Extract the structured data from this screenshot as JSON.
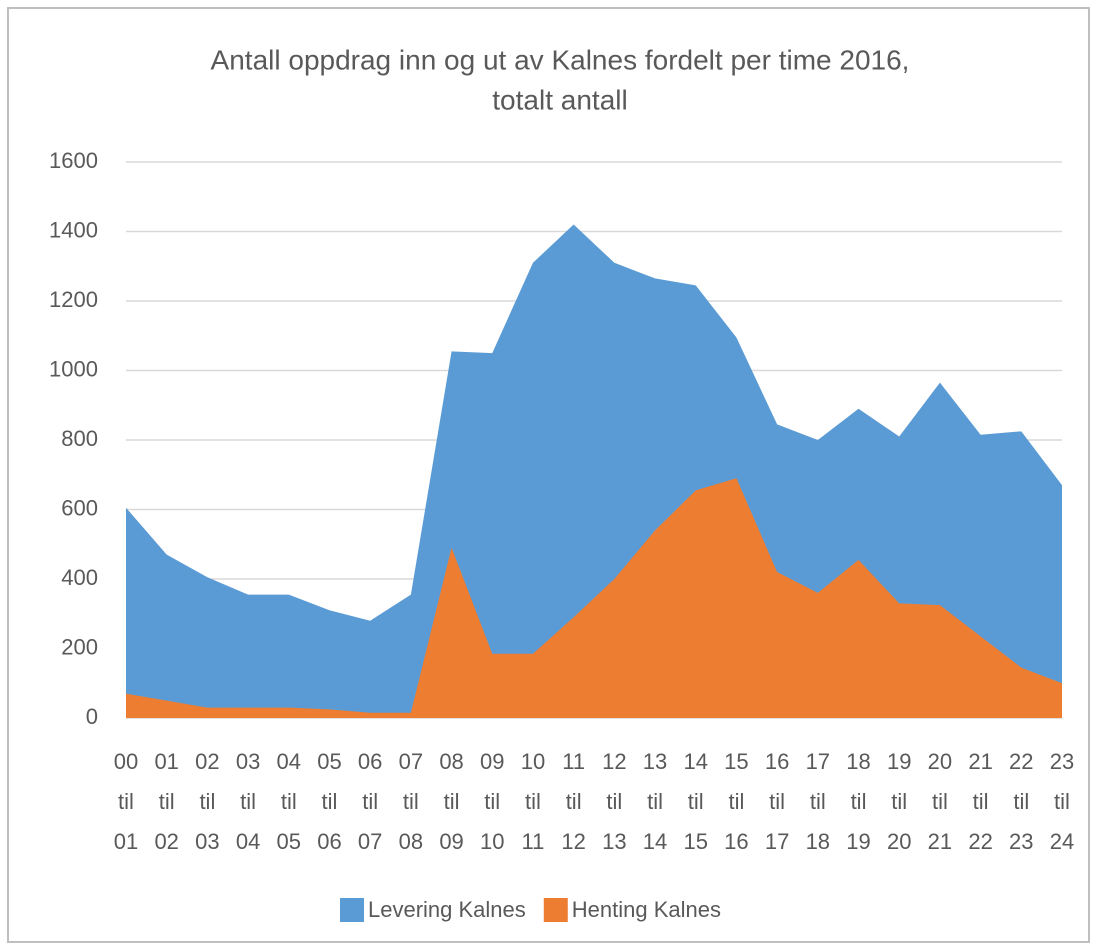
{
  "chart_data": {
    "type": "area",
    "title": [
      "Antall oppdrag inn og ut av Kalnes fordelt per time 2016,",
      "totalt antall"
    ],
    "categories": [
      "00 til 01",
      "01 til 02",
      "02 til 03",
      "03 til 04",
      "04 til 05",
      "05 til 06",
      "06 til 07",
      "07 til 08",
      "08 til 09",
      "09 til 10",
      "10 til 11",
      "11 til 12",
      "12 til 13",
      "13 til 14",
      "14 til 15",
      "15 til 16",
      "16 til 17",
      "17 til 18",
      "18 til 19",
      "19 til 20",
      "20 til 21",
      "21 til 22",
      "22 til 23",
      "23 til 24"
    ],
    "series": [
      {
        "name": "Levering Kalnes",
        "color": "#5b9bd5",
        "values": [
          605,
          470,
          405,
          355,
          355,
          310,
          280,
          355,
          1055,
          1050,
          1310,
          1420,
          1310,
          1265,
          1245,
          1095,
          845,
          800,
          890,
          810,
          965,
          815,
          825,
          670
        ]
      },
      {
        "name": "Henting Kalnes",
        "color": "#ed7d31",
        "values": [
          70,
          50,
          30,
          30,
          30,
          25,
          15,
          15,
          490,
          185,
          185,
          290,
          400,
          540,
          655,
          690,
          420,
          360,
          455,
          330,
          325,
          235,
          145,
          100
        ]
      }
    ],
    "ylim": [
      0,
      1600
    ],
    "yticks": [
      0,
      200,
      400,
      600,
      800,
      1000,
      1200,
      1400,
      1600
    ],
    "grid": true,
    "legend": "bottom"
  }
}
